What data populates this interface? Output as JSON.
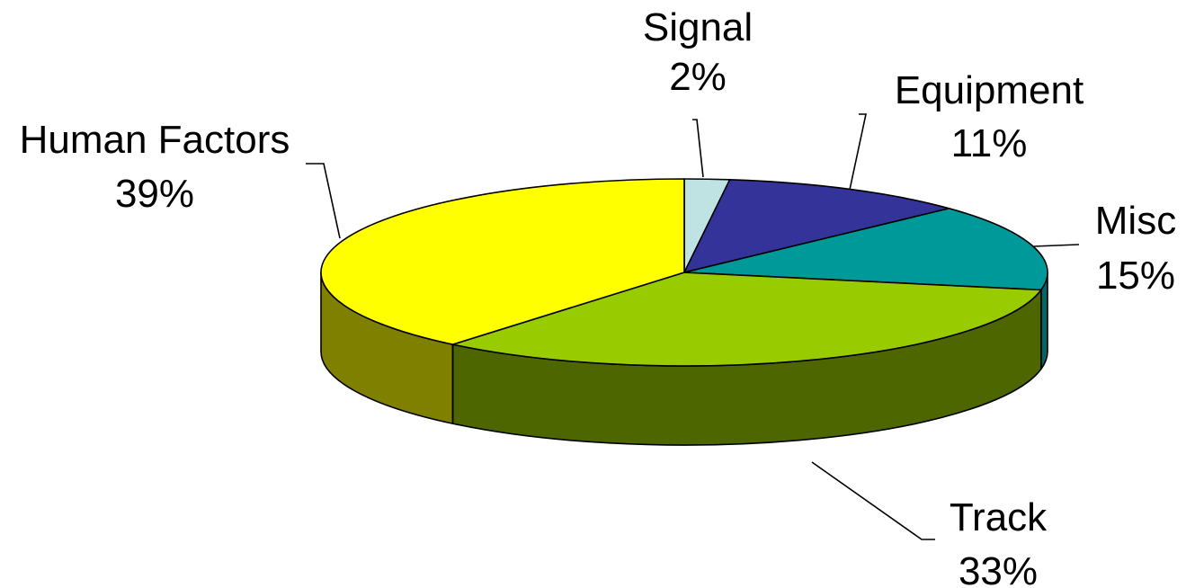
{
  "chart_data": {
    "type": "pie",
    "three_d": true,
    "title": "",
    "slices": [
      {
        "label": "Signal",
        "value": 2,
        "pct_label": "2%",
        "top_color": "#BFE3E3",
        "side_color": "#8FB3B3"
      },
      {
        "label": "Equipment",
        "value": 11,
        "pct_label": "11%",
        "top_color": "#333399",
        "side_color": "#1F1F6B"
      },
      {
        "label": "Misc",
        "value": 15,
        "pct_label": "15%",
        "top_color": "#009999",
        "side_color": "#006666"
      },
      {
        "label": "Track",
        "value": 33,
        "pct_label": "33%",
        "top_color": "#99CC00",
        "side_color": "#4D6600"
      },
      {
        "label": "Human Factors",
        "value": 39,
        "pct_label": "39%",
        "top_color": "#FFFF00",
        "side_color": "#808000"
      }
    ],
    "legend": "none",
    "data_labels": "outside with leader lines"
  }
}
